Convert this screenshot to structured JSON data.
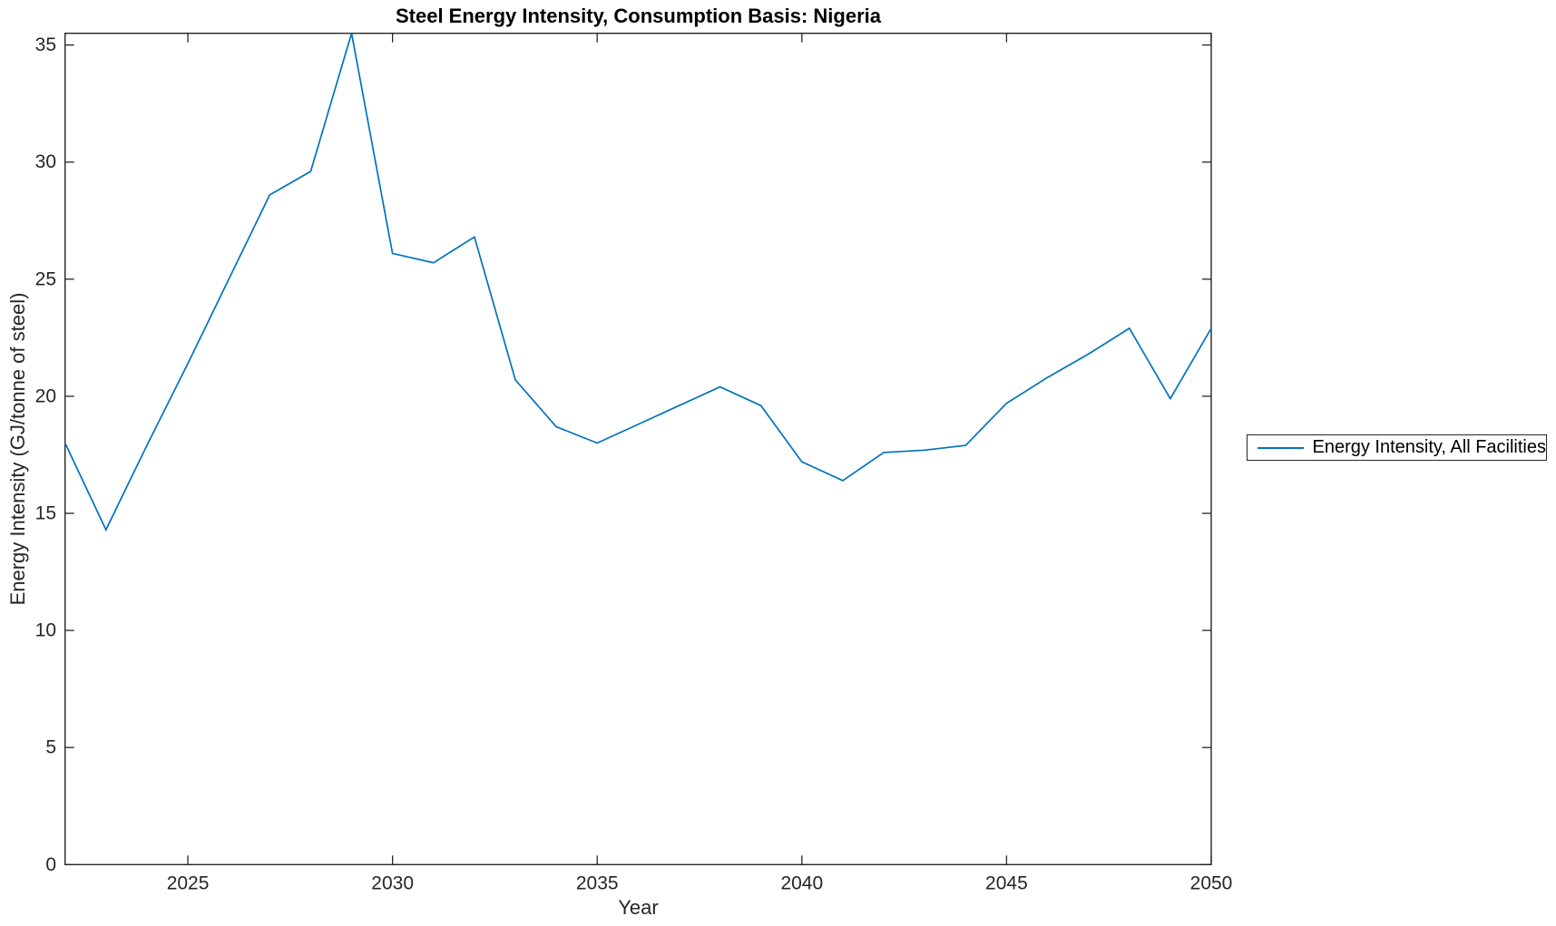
{
  "chart_data": {
    "type": "line",
    "title": "Steel Energy Intensity, Consumption Basis: Nigeria",
    "xlabel": "Year",
    "ylabel": "Energy Intensity (GJ/tonne of steel)",
    "xlim": [
      2022,
      2050
    ],
    "ylim": [
      0,
      35.5
    ],
    "x_ticks": [
      2025,
      2030,
      2035,
      2040,
      2045,
      2050
    ],
    "y_ticks": [
      0,
      5,
      10,
      15,
      20,
      25,
      30,
      35
    ],
    "grid": false,
    "legend_position": "outside-right",
    "axis_color": "#262626",
    "series": [
      {
        "name": "Energy Intensity, All Facilities",
        "color": "#0072BD",
        "x": [
          2022,
          2023,
          2024,
          2025,
          2026,
          2027,
          2028,
          2029,
          2030,
          2031,
          2032,
          2033,
          2034,
          2035,
          2036,
          2037,
          2038,
          2039,
          2040,
          2041,
          2042,
          2043,
          2044,
          2045,
          2046,
          2047,
          2048,
          2049,
          2050
        ],
        "values": [
          18.0,
          14.3,
          17.9,
          21.4,
          25.0,
          28.6,
          29.6,
          35.5,
          26.1,
          25.7,
          26.8,
          20.7,
          18.7,
          18.0,
          18.8,
          19.6,
          20.4,
          19.6,
          17.2,
          16.4,
          17.6,
          17.7,
          17.9,
          19.7,
          20.8,
          21.8,
          22.9,
          19.9,
          22.9
        ]
      }
    ]
  },
  "legend": {
    "entries": [
      {
        "label": "Energy Intensity, All Facilities",
        "color": "#0072BD"
      }
    ]
  }
}
